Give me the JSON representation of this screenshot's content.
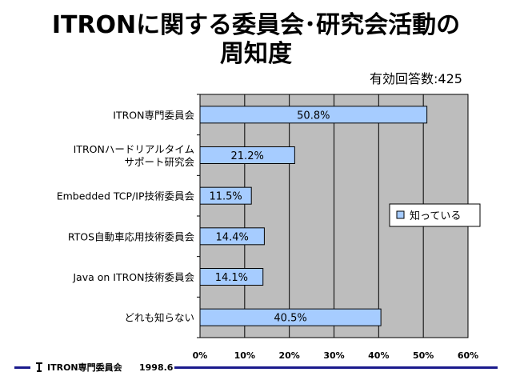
{
  "title_line1": "ITRONに関する委員会･研究会活動の",
  "title_line2": "周知度",
  "respondents": "有効回答数:425",
  "footer": {
    "org": "ITRON専門委員会",
    "date": "1998.6"
  },
  "colors": {
    "plot_bg": "#bdbdbd",
    "bar_fill": "#a6ccff",
    "axis": "#000000",
    "footer_line": "#1a1a8c"
  },
  "chart_data": {
    "type": "bar",
    "orientation": "horizontal",
    "categories": [
      [
        "ITRON専門委員会"
      ],
      [
        "ITRONハードリアルタイム",
        "サポート研究会"
      ],
      [
        "Embedded TCP/IP技術委員会"
      ],
      [
        "RTOS自動車応用技術委員会"
      ],
      [
        "Java on ITRON技術委員会"
      ],
      [
        "どれも知らない"
      ]
    ],
    "series": [
      {
        "name": "知っている",
        "values": [
          50.8,
          21.2,
          11.5,
          14.4,
          14.1,
          40.5
        ]
      }
    ],
    "data_labels": [
      "50.8%",
      "21.2%",
      "11.5%",
      "14.4%",
      "14.1%",
      "40.5%"
    ],
    "xlim": [
      0,
      60
    ],
    "xticks": [
      0,
      10,
      20,
      30,
      40,
      50,
      60
    ],
    "xtick_labels": [
      "0%",
      "10%",
      "20%",
      "30%",
      "40%",
      "50%",
      "60%"
    ],
    "grid": "vertical",
    "legend_position": "right"
  }
}
